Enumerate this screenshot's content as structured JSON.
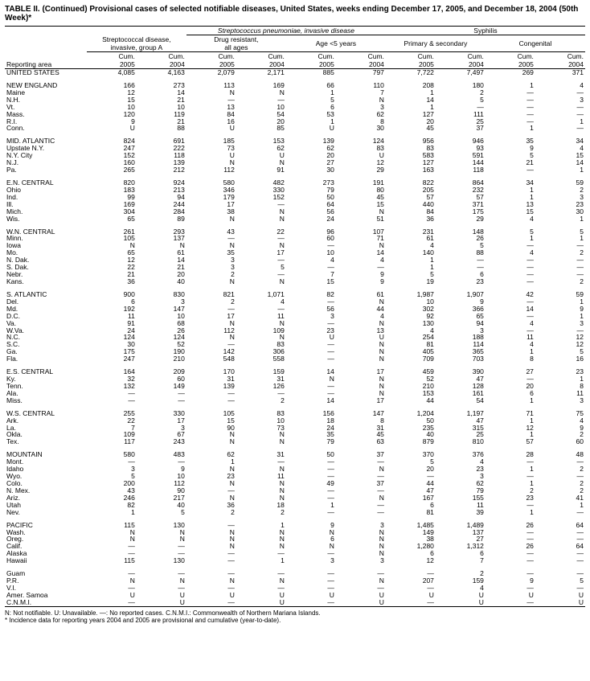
{
  "title": "TABLE II. (Continued) Provisional cases of selected notifiable diseases, United States, weeks ending December 17, 2005, and December 18, 2004 (50th Week)*",
  "header": {
    "reporting_area": "Reporting area",
    "strep_disease": "Streptococcal disease,\ninvasive, group A",
    "strep_pneumo": "Streptococcus pneumoniae, invasive disease",
    "drug_resistant": "Drug resistant,\nall ages",
    "age5": "Age <5 years",
    "syphilis": "Syphilis",
    "primary_secondary": "Primary & secondary",
    "congenital": "Congenital",
    "cum2005": "Cum.\n2005",
    "cum2004": "Cum.\n2004"
  },
  "footnote": "N: Not notifiable.        U: Unavailable.        —: No reported cases.        C.N.M.I.: Commonwealth of Northern Mariana Islands.\n* Incidence data for reporting years 2004 and 2005 are provisional and cumulative (year-to-date).",
  "groups": [
    {
      "rows": [
        [
          "UNITED STATES",
          "4,085",
          "4,163",
          "2,079",
          "2,171",
          "885",
          "797",
          "7,722",
          "7,497",
          "269",
          "371"
        ]
      ]
    },
    {
      "rows": [
        [
          "NEW ENGLAND",
          "166",
          "273",
          "113",
          "169",
          "66",
          "110",
          "208",
          "180",
          "1",
          "4"
        ],
        [
          "Maine",
          "12",
          "14",
          "N",
          "N",
          "1",
          "7",
          "1",
          "2",
          "—",
          "—"
        ],
        [
          "N.H.",
          "15",
          "21",
          "—",
          "—",
          "5",
          "N",
          "14",
          "5",
          "—",
          "3"
        ],
        [
          "Vt.",
          "10",
          "10",
          "13",
          "10",
          "6",
          "3",
          "1",
          "—",
          "—",
          "—"
        ],
        [
          "Mass.",
          "120",
          "119",
          "84",
          "54",
          "53",
          "62",
          "127",
          "111",
          "—",
          "—"
        ],
        [
          "R.I.",
          "9",
          "21",
          "16",
          "20",
          "1",
          "8",
          "20",
          "25",
          "—",
          "1"
        ],
        [
          "Conn.",
          "U",
          "88",
          "U",
          "85",
          "U",
          "30",
          "45",
          "37",
          "1",
          "—"
        ]
      ]
    },
    {
      "rows": [
        [
          "MID. ATLANTIC",
          "824",
          "691",
          "185",
          "153",
          "139",
          "124",
          "956",
          "946",
          "35",
          "34"
        ],
        [
          "Upstate N.Y.",
          "247",
          "222",
          "73",
          "62",
          "62",
          "83",
          "83",
          "93",
          "9",
          "4"
        ],
        [
          "N.Y. City",
          "152",
          "118",
          "U",
          "U",
          "20",
          "U",
          "583",
          "591",
          "5",
          "15"
        ],
        [
          "N.J.",
          "160",
          "139",
          "N",
          "N",
          "27",
          "12",
          "127",
          "144",
          "21",
          "14"
        ],
        [
          "Pa.",
          "265",
          "212",
          "112",
          "91",
          "30",
          "29",
          "163",
          "118",
          "—",
          "1"
        ]
      ]
    },
    {
      "rows": [
        [
          "E.N. CENTRAL",
          "820",
          "924",
          "580",
          "482",
          "273",
          "191",
          "822",
          "864",
          "34",
          "59"
        ],
        [
          "Ohio",
          "183",
          "213",
          "346",
          "330",
          "79",
          "80",
          "205",
          "232",
          "1",
          "2"
        ],
        [
          "Ind.",
          "99",
          "94",
          "179",
          "152",
          "50",
          "45",
          "57",
          "57",
          "1",
          "3"
        ],
        [
          "Ill.",
          "169",
          "244",
          "17",
          "—",
          "64",
          "15",
          "440",
          "371",
          "13",
          "23"
        ],
        [
          "Mich.",
          "304",
          "284",
          "38",
          "N",
          "56",
          "N",
          "84",
          "175",
          "15",
          "30"
        ],
        [
          "Wis.",
          "65",
          "89",
          "N",
          "N",
          "24",
          "51",
          "36",
          "29",
          "4",
          "1"
        ]
      ]
    },
    {
      "rows": [
        [
          "W.N. CENTRAL",
          "261",
          "293",
          "43",
          "22",
          "96",
          "107",
          "231",
          "148",
          "5",
          "5"
        ],
        [
          "Minn.",
          "105",
          "137",
          "—",
          "—",
          "60",
          "71",
          "61",
          "26",
          "1",
          "1"
        ],
        [
          "Iowa",
          "N",
          "N",
          "N",
          "N",
          "—",
          "N",
          "4",
          "5",
          "—",
          "—"
        ],
        [
          "Mo.",
          "65",
          "61",
          "35",
          "17",
          "10",
          "14",
          "140",
          "88",
          "4",
          "2"
        ],
        [
          "N. Dak.",
          "12",
          "14",
          "3",
          "—",
          "4",
          "4",
          "1",
          "—",
          "—",
          "—"
        ],
        [
          "S. Dak.",
          "22",
          "21",
          "3",
          "5",
          "—",
          "—",
          "1",
          "—",
          "—",
          "—"
        ],
        [
          "Nebr.",
          "21",
          "20",
          "2",
          "—",
          "7",
          "9",
          "5",
          "6",
          "—",
          "—"
        ],
        [
          "Kans.",
          "36",
          "40",
          "N",
          "N",
          "15",
          "9",
          "19",
          "23",
          "—",
          "2"
        ]
      ]
    },
    {
      "rows": [
        [
          "S. ATLANTIC",
          "900",
          "830",
          "821",
          "1,071",
          "82",
          "61",
          "1,987",
          "1,907",
          "42",
          "59"
        ],
        [
          "Del.",
          "6",
          "3",
          "2",
          "4",
          "—",
          "N",
          "10",
          "9",
          "—",
          "1"
        ],
        [
          "Md.",
          "192",
          "147",
          "—",
          "—",
          "56",
          "44",
          "302",
          "366",
          "14",
          "9"
        ],
        [
          "D.C.",
          "11",
          "10",
          "17",
          "11",
          "3",
          "4",
          "92",
          "65",
          "—",
          "1"
        ],
        [
          "Va.",
          "91",
          "68",
          "N",
          "N",
          "—",
          "N",
          "130",
          "94",
          "4",
          "3"
        ],
        [
          "W.Va.",
          "24",
          "26",
          "112",
          "109",
          "23",
          "13",
          "4",
          "3",
          "—",
          "—"
        ],
        [
          "N.C.",
          "124",
          "124",
          "N",
          "N",
          "U",
          "U",
          "254",
          "188",
          "11",
          "12"
        ],
        [
          "S.C.",
          "30",
          "52",
          "—",
          "83",
          "—",
          "N",
          "81",
          "114",
          "4",
          "12"
        ],
        [
          "Ga.",
          "175",
          "190",
          "142",
          "306",
          "—",
          "N",
          "405",
          "365",
          "1",
          "5"
        ],
        [
          "Fla.",
          "247",
          "210",
          "548",
          "558",
          "—",
          "N",
          "709",
          "703",
          "8",
          "16"
        ]
      ]
    },
    {
      "rows": [
        [
          "E.S. CENTRAL",
          "164",
          "209",
          "170",
          "159",
          "14",
          "17",
          "459",
          "390",
          "27",
          "23"
        ],
        [
          "Ky.",
          "32",
          "60",
          "31",
          "31",
          "N",
          "N",
          "52",
          "47",
          "—",
          "1"
        ],
        [
          "Tenn.",
          "132",
          "149",
          "139",
          "126",
          "—",
          "N",
          "210",
          "128",
          "20",
          "8"
        ],
        [
          "Ala.",
          "—",
          "—",
          "—",
          "—",
          "—",
          "N",
          "153",
          "161",
          "6",
          "11"
        ],
        [
          "Miss.",
          "—",
          "—",
          "—",
          "2",
          "14",
          "17",
          "44",
          "54",
          "1",
          "3"
        ]
      ]
    },
    {
      "rows": [
        [
          "W.S. CENTRAL",
          "255",
          "330",
          "105",
          "83",
          "156",
          "147",
          "1,204",
          "1,197",
          "71",
          "75"
        ],
        [
          "Ark.",
          "22",
          "17",
          "15",
          "10",
          "18",
          "8",
          "50",
          "47",
          "1",
          "4"
        ],
        [
          "La.",
          "7",
          "3",
          "90",
          "73",
          "24",
          "31",
          "235",
          "315",
          "12",
          "9"
        ],
        [
          "Okla.",
          "109",
          "67",
          "N",
          "N",
          "35",
          "45",
          "40",
          "25",
          "1",
          "2"
        ],
        [
          "Tex.",
          "117",
          "243",
          "N",
          "N",
          "79",
          "63",
          "879",
          "810",
          "57",
          "60"
        ]
      ]
    },
    {
      "rows": [
        [
          "MOUNTAIN",
          "580",
          "483",
          "62",
          "31",
          "50",
          "37",
          "370",
          "376",
          "28",
          "48"
        ],
        [
          "Mont.",
          "—",
          "—",
          "1",
          "—",
          "—",
          "—",
          "5",
          "4",
          "—",
          "—"
        ],
        [
          "Idaho",
          "3",
          "9",
          "N",
          "N",
          "—",
          "N",
          "20",
          "23",
          "1",
          "2"
        ],
        [
          "Wyo.",
          "5",
          "10",
          "23",
          "11",
          "—",
          "—",
          "—",
          "3",
          "—",
          "—"
        ],
        [
          "Colo.",
          "200",
          "112",
          "N",
          "N",
          "49",
          "37",
          "44",
          "62",
          "1",
          "2"
        ],
        [
          "N. Mex.",
          "43",
          "90",
          "—",
          "N",
          "—",
          "—",
          "47",
          "79",
          "2",
          "2"
        ],
        [
          "Ariz.",
          "246",
          "217",
          "N",
          "N",
          "—",
          "N",
          "167",
          "155",
          "23",
          "41"
        ],
        [
          "Utah",
          "82",
          "40",
          "36",
          "18",
          "1",
          "—",
          "6",
          "11",
          "—",
          "1"
        ],
        [
          "Nev.",
          "1",
          "5",
          "2",
          "2",
          "—",
          "—",
          "81",
          "39",
          "1",
          "—"
        ]
      ]
    },
    {
      "rows": [
        [
          "PACIFIC",
          "115",
          "130",
          "—",
          "1",
          "9",
          "3",
          "1,485",
          "1,489",
          "26",
          "64"
        ],
        [
          "Wash.",
          "N",
          "N",
          "N",
          "N",
          "N",
          "N",
          "149",
          "137",
          "—",
          "—"
        ],
        [
          "Oreg.",
          "N",
          "N",
          "N",
          "N",
          "6",
          "N",
          "38",
          "27",
          "—",
          "—"
        ],
        [
          "Calif.",
          "—",
          "—",
          "N",
          "N",
          "N",
          "N",
          "1,280",
          "1,312",
          "26",
          "64"
        ],
        [
          "Alaska",
          "—",
          "—",
          "—",
          "—",
          "—",
          "N",
          "6",
          "6",
          "—",
          "—"
        ],
        [
          "Hawaii",
          "115",
          "130",
          "—",
          "1",
          "3",
          "3",
          "12",
          "7",
          "—",
          "—"
        ]
      ]
    },
    {
      "rows": [
        [
          "Guam",
          "—",
          "—",
          "—",
          "—",
          "—",
          "—",
          "—",
          "2",
          "—",
          "—"
        ],
        [
          "P.R.",
          "N",
          "N",
          "N",
          "N",
          "—",
          "N",
          "207",
          "159",
          "9",
          "5"
        ],
        [
          "V.I.",
          "—",
          "—",
          "—",
          "—",
          "—",
          "—",
          "—",
          "4",
          "—",
          "—"
        ],
        [
          "Amer. Samoa",
          "U",
          "U",
          "U",
          "U",
          "U",
          "U",
          "U",
          "U",
          "U",
          "U"
        ],
        [
          "C.N.M.I.",
          "—",
          "U",
          "—",
          "U",
          "—",
          "U",
          "—",
          "U",
          "—",
          "U"
        ]
      ]
    }
  ]
}
